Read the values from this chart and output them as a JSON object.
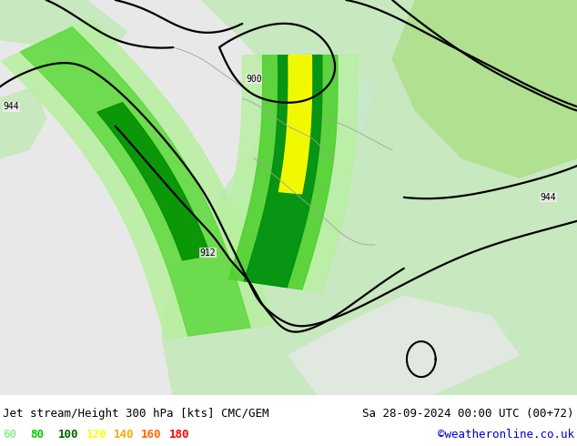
{
  "title_left": "Jet stream/Height 300 hPa [kts] CMC/GEM",
  "title_right": "Sa 28-09-2024 00:00 UTC (00+72)",
  "credit": "©weatheronline.co.uk",
  "legend_values": [
    60,
    80,
    100,
    120,
    140,
    160,
    180
  ],
  "legend_colors": [
    "#90ee90",
    "#00cc00",
    "#006600",
    "#ffff00",
    "#ffaa00",
    "#ff6600",
    "#ff0000"
  ],
  "figure_width": 6.34,
  "figure_height": 4.9,
  "dpi": 100,
  "title_fontsize": 9,
  "legend_fontsize": 9,
  "credit_color": "#0000cc",
  "title_color": "#000000"
}
